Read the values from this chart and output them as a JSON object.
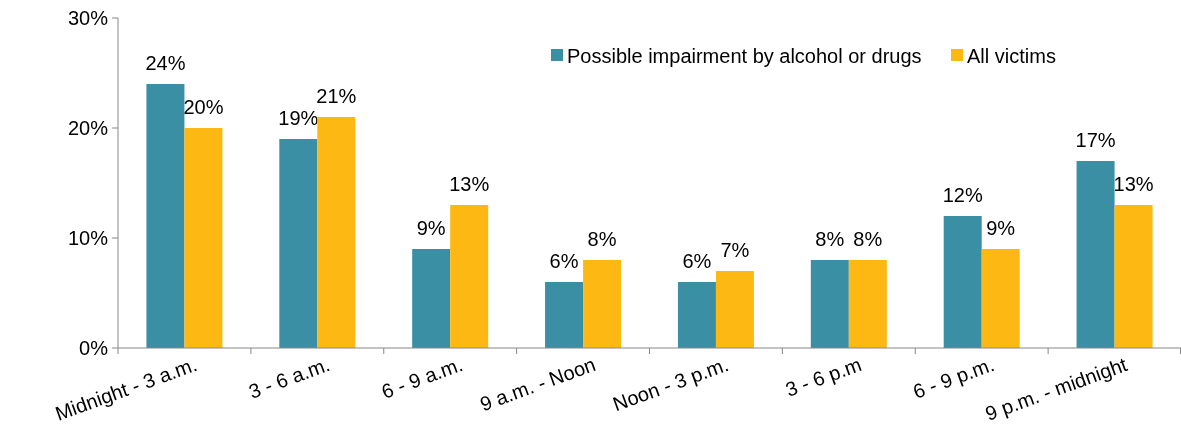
{
  "chart_data": {
    "type": "bar",
    "categories": [
      "Midnight - 3 a.m.",
      "3 - 6 a.m.",
      "6 - 9 a.m.",
      "9 a.m. - Noon",
      "Noon - 3 p.m.",
      "3 - 6 p.m",
      "6 - 9 p.m.",
      "9 p.m. - midnight"
    ],
    "series": [
      {
        "name": "Possible impairment by alcohol or drugs",
        "color": "#3a8fa5",
        "values": [
          24,
          19,
          9,
          6,
          6,
          8,
          12,
          17
        ],
        "value_labels": [
          "24%",
          "19%",
          "9%",
          "6%",
          "6%",
          "8%",
          "12%",
          "17%"
        ]
      },
      {
        "name": "All victims",
        "color": "#fdb813",
        "values": [
          20,
          21,
          13,
          8,
          7,
          8,
          9,
          13
        ],
        "value_labels": [
          "20%",
          "21%",
          "13%",
          "8%",
          "7%",
          "8%",
          "9%",
          "13%"
        ]
      }
    ],
    "ylim": [
      0,
      30
    ],
    "yticks": [
      {
        "value": 0,
        "label": "0%"
      },
      {
        "value": 10,
        "label": "10%"
      },
      {
        "value": 20,
        "label": "20%"
      },
      {
        "value": 30,
        "label": "30%"
      }
    ],
    "grid": false,
    "legend": "top right"
  }
}
